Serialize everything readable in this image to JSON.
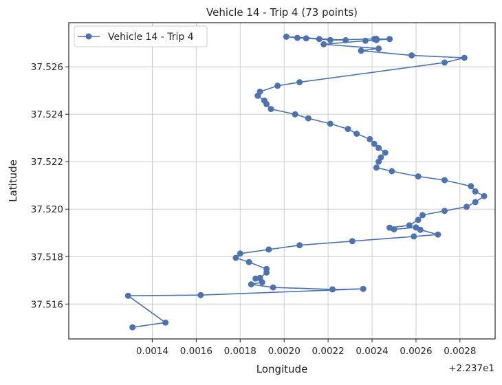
{
  "chart_data": {
    "type": "line",
    "title": "Vehicle 14 - Trip 4 (73 points)",
    "xlabel": "Longitude",
    "ylabel": "Latitude",
    "x_offset_label": "+2.237e1",
    "xlim": [
      22.37102,
      22.37296
    ],
    "ylim": [
      37.51453,
      37.52786
    ],
    "x_ticks": [
      22.3714,
      22.3716,
      22.3718,
      22.372,
      22.3722,
      22.3724,
      22.3726,
      22.3728
    ],
    "x_tick_labels": [
      "0.0014",
      "0.0016",
      "0.0018",
      "0.0020",
      "0.0022",
      "0.0024",
      "0.0026",
      "0.0028"
    ],
    "y_ticks": [
      37.516,
      37.518,
      37.52,
      37.522,
      37.524,
      37.526
    ],
    "y_tick_labels": [
      "37.516",
      "37.518",
      "37.520",
      "37.522",
      "37.524",
      "37.526"
    ],
    "grid": true,
    "legend_position": "top-left",
    "series": [
      {
        "name": "Vehicle 14 - Trip 4",
        "color": "#4c72b0",
        "marker": "circle",
        "points": [
          [
            22.37131,
            37.51502
          ],
          [
            22.37146,
            37.51522
          ],
          [
            22.37129,
            37.51635
          ],
          [
            22.37162,
            37.51638
          ],
          [
            22.37236,
            37.51664
          ],
          [
            22.37222,
            37.51662
          ],
          [
            22.37195,
            37.5167
          ],
          [
            22.37185,
            37.51683
          ],
          [
            22.3719,
            37.51692
          ],
          [
            22.37187,
            37.51707
          ],
          [
            22.37189,
            37.5171
          ],
          [
            22.37192,
            37.51733
          ],
          [
            22.37192,
            37.51748
          ],
          [
            22.37184,
            37.51777
          ],
          [
            22.37178,
            37.51795
          ],
          [
            22.3718,
            37.51813
          ],
          [
            22.37193,
            37.5183
          ],
          [
            22.37207,
            37.51848
          ],
          [
            22.37231,
            37.51865
          ],
          [
            22.37259,
            37.51885
          ],
          [
            22.3727,
            37.51893
          ],
          [
            22.37262,
            37.51913
          ],
          [
            22.3726,
            37.51923
          ],
          [
            22.3725,
            37.51915
          ],
          [
            22.37248,
            37.51922
          ],
          [
            22.37257,
            37.51932
          ],
          [
            22.37261,
            37.51955
          ],
          [
            22.37263,
            37.51975
          ],
          [
            22.37273,
            37.51993
          ],
          [
            22.37283,
            37.5201
          ],
          [
            22.37287,
            37.5203
          ],
          [
            22.37291,
            37.52055
          ],
          [
            22.37287,
            37.52075
          ],
          [
            22.37285,
            37.52097
          ],
          [
            22.37273,
            37.52122
          ],
          [
            22.37261,
            37.52138
          ],
          [
            22.37249,
            37.5216
          ],
          [
            22.37242,
            37.52175
          ],
          [
            22.37243,
            37.522
          ],
          [
            22.37244,
            37.52218
          ],
          [
            22.37246,
            37.52238
          ],
          [
            22.37243,
            37.52258
          ],
          [
            22.37241,
            37.52275
          ],
          [
            22.37239,
            37.52295
          ],
          [
            22.37233,
            37.52318
          ],
          [
            22.37229,
            37.52338
          ],
          [
            22.37221,
            37.5236
          ],
          [
            22.37211,
            37.52383
          ],
          [
            22.37205,
            37.524
          ],
          [
            22.37194,
            37.52422
          ],
          [
            22.37192,
            37.52443
          ],
          [
            22.37191,
            37.52458
          ],
          [
            22.37188,
            37.52478
          ],
          [
            22.37189,
            37.52495
          ],
          [
            22.37197,
            37.5252
          ],
          [
            22.37207,
            37.52535
          ],
          [
            22.37273,
            37.52618
          ],
          [
            22.37282,
            37.52638
          ],
          [
            22.37258,
            37.52648
          ],
          [
            22.37235,
            37.52668
          ],
          [
            22.37243,
            37.52677
          ],
          [
            22.37218,
            37.52695
          ],
          [
            22.37237,
            37.5271
          ],
          [
            22.37242,
            37.52713
          ],
          [
            22.37248,
            37.52717
          ],
          [
            22.37241,
            37.52717
          ],
          [
            22.37242,
            37.52718
          ],
          [
            22.37221,
            37.52713
          ],
          [
            22.37216,
            37.52717
          ],
          [
            22.3721,
            37.5272
          ],
          [
            22.37206,
            37.52722
          ],
          [
            22.37201,
            37.52727
          ],
          [
            22.37228,
            37.52712
          ]
        ]
      }
    ]
  }
}
